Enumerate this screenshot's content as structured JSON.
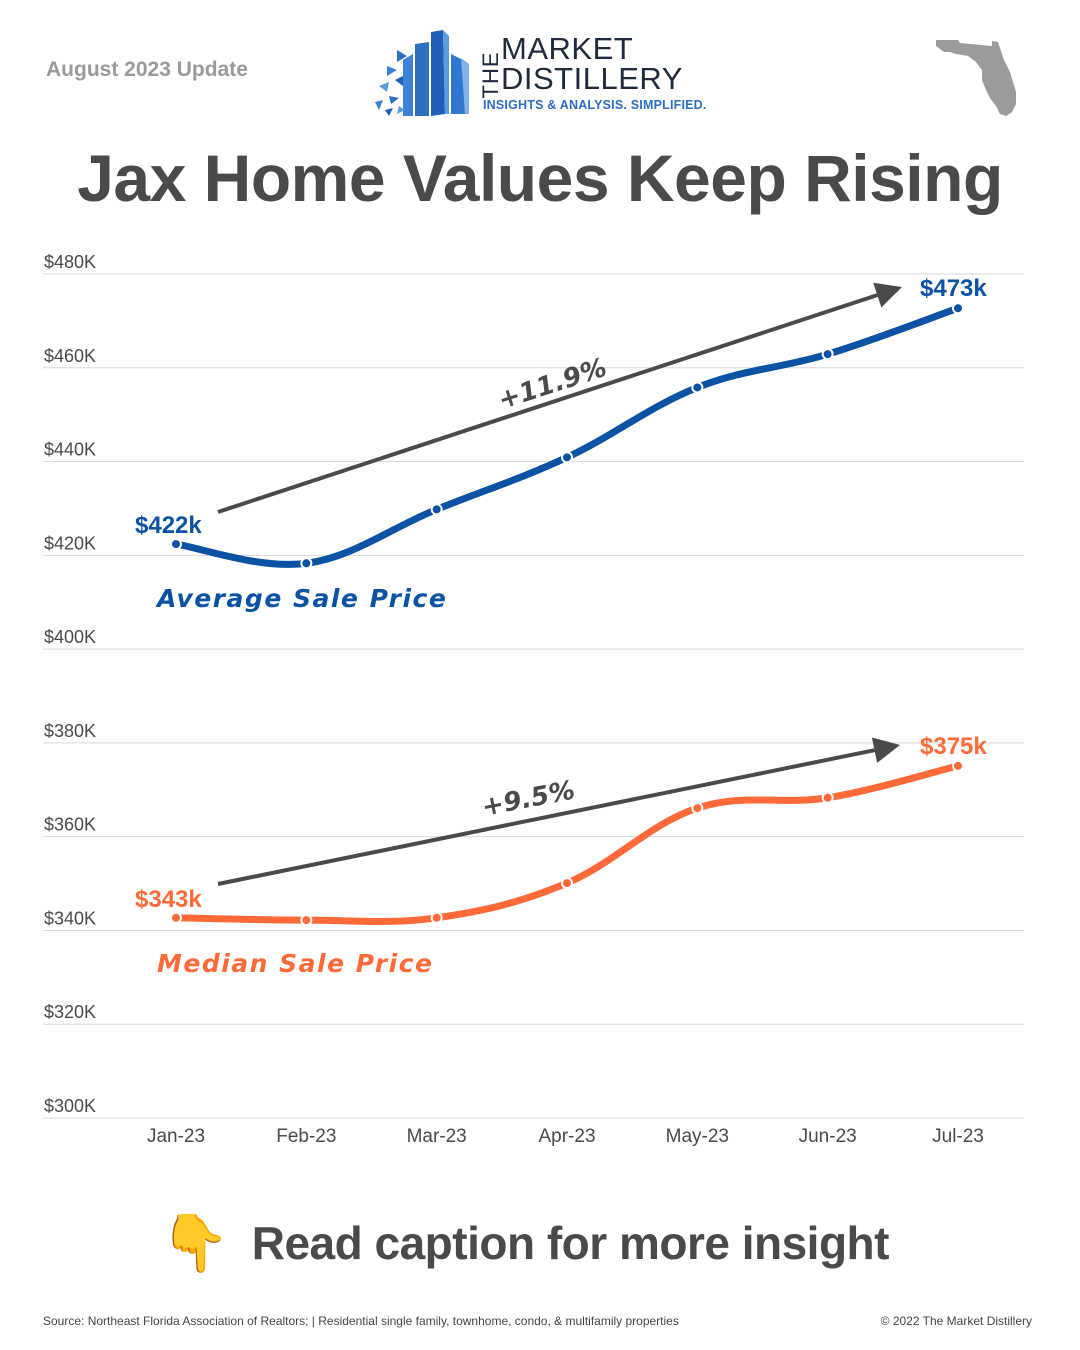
{
  "header": {
    "update_label": "August 2023 Update",
    "logo": {
      "the": "THE",
      "line1": "MARKET",
      "line2": "DISTILLERY",
      "tagline": "INSIGHTS & ANALYSIS. SIMPLIFIED."
    },
    "state_icon": "florida-map-icon",
    "title": "Jax Home Values Keep Rising"
  },
  "colors": {
    "average": "#0a52a3",
    "median": "#ff6a38",
    "trend_arrow": "#4a4a4a",
    "grid": "#d9d9d9",
    "logo_blue": "#2c6fc1",
    "state_gray": "#9b9b9b"
  },
  "chart_data": {
    "type": "line",
    "title": "Jax Home Values Keep Rising",
    "xlabel": "",
    "ylabel": "",
    "ylim": [
      300,
      480
    ],
    "y_ticks": [
      480,
      460,
      440,
      420,
      400,
      380,
      360,
      340,
      320,
      300
    ],
    "y_tick_labels": [
      "$480K",
      "$460K",
      "$440K",
      "$420K",
      "$400K",
      "$380K",
      "$360K",
      "$340K",
      "$320K",
      "$300K"
    ],
    "grid": true,
    "categories": [
      "Jan-23",
      "Feb-23",
      "Mar-23",
      "Apr-23",
      "May-23",
      "Jun-23",
      "Jul-23"
    ],
    "series": [
      {
        "name": "Average Sale Price",
        "unit": "$K",
        "values": [
          422.4,
          418.3,
          429.8,
          440.9,
          455.8,
          462.9,
          472.7
        ],
        "start_label": "$422k",
        "end_label": "$473k",
        "trend_annotation": "+11.9%"
      },
      {
        "name": "Median Sale Price",
        "unit": "$K",
        "values": [
          342.7,
          342.2,
          342.7,
          350.1,
          366.1,
          368.3,
          375.1
        ],
        "start_label": "$343k",
        "end_label": "$375k",
        "trend_annotation": "+9.5%"
      }
    ],
    "series_labels_display": [
      "Average Sale Price",
      "Median Sale Price"
    ]
  },
  "cta": {
    "icon": "👇",
    "icon_name": "pointing-down-icon",
    "text": "Read caption for more insight"
  },
  "footer": {
    "source": "Source: Northeast Florida Association of Realtors; | Residential single family, townhome, condo, & multifamily properties",
    "copyright": "© 2022 The Market Distillery"
  }
}
